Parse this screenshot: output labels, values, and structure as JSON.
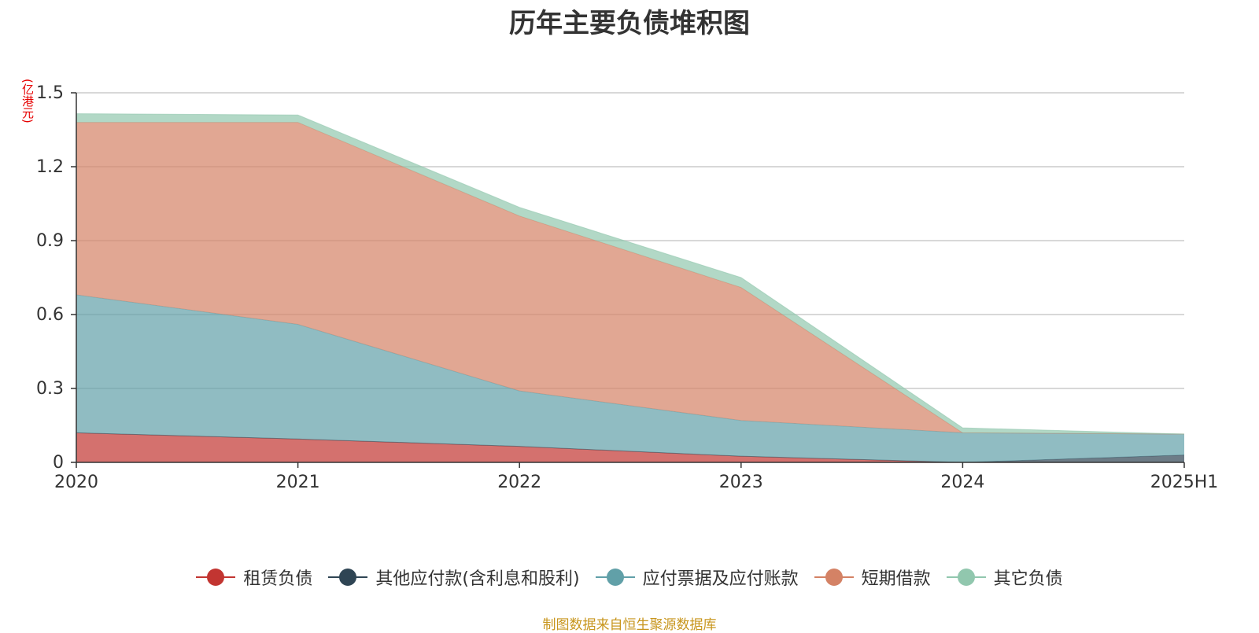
{
  "title": "历年主要负债堆积图",
  "unit_label": "(亿港元)",
  "source": "制图数据来自恒生聚源数据库",
  "chart_data": {
    "type": "area",
    "stacked": true,
    "categories": [
      "2020",
      "2021",
      "2022",
      "2023",
      "2024",
      "2025H1"
    ],
    "ylim": [
      0,
      1.5
    ],
    "yticks": [
      0,
      0.3,
      0.6,
      0.9,
      1.2,
      1.5
    ],
    "ytick_labels": [
      "0",
      "0.3",
      "0.6",
      "0.9",
      "1.2",
      "1.5"
    ],
    "grid": true,
    "legend_position": "bottom",
    "series": [
      {
        "name": "租赁负债",
        "color": "#c23531",
        "values": [
          0.12,
          0.095,
          0.065,
          0.025,
          0.0,
          0.0
        ]
      },
      {
        "name": "其他应付款(含利息和股利)",
        "color": "#2f4554",
        "values": [
          0.0,
          0.0,
          0.0,
          0.0,
          0.0,
          0.03
        ]
      },
      {
        "name": "应付票据及应付账款",
        "color": "#61a0a8",
        "values": [
          0.56,
          0.465,
          0.225,
          0.145,
          0.12,
          0.085
        ]
      },
      {
        "name": "短期借款",
        "color": "#d48265",
        "values": [
          0.7,
          0.82,
          0.71,
          0.54,
          0.0,
          0.0
        ]
      },
      {
        "name": "其它负债",
        "color": "#91c7ae",
        "values": [
          0.035,
          0.03,
          0.035,
          0.04,
          0.02,
          0.0
        ]
      }
    ]
  }
}
